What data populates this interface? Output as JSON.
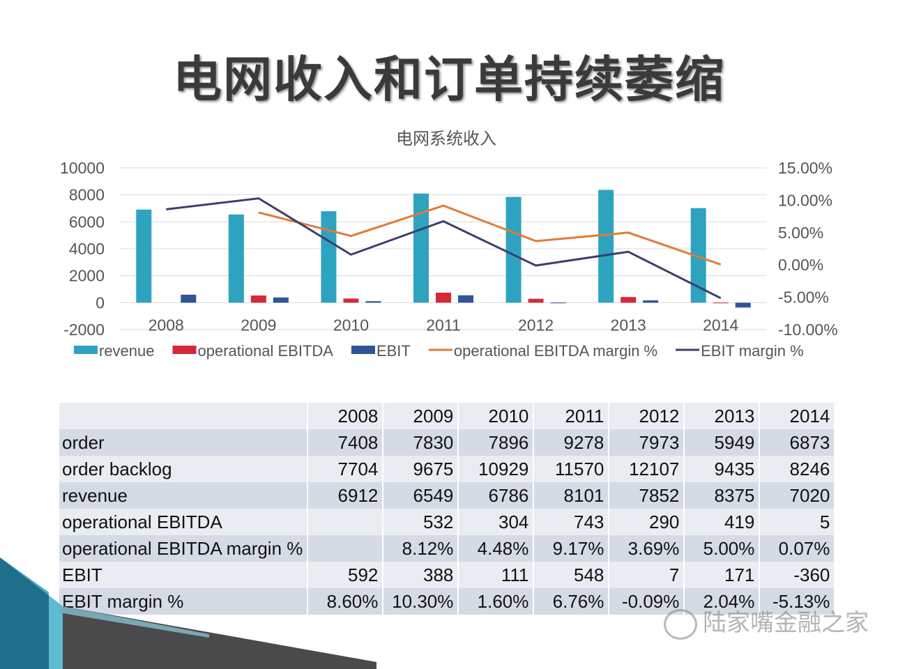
{
  "slide": {
    "title": "电网收入和订单持续萎缩"
  },
  "chart_data": {
    "type": "bar",
    "title": "电网系统收入",
    "categories": [
      "2008",
      "2009",
      "2010",
      "2011",
      "2012",
      "2013",
      "2014"
    ],
    "series": [
      {
        "name": "revenue",
        "kind": "bar",
        "axis": "left",
        "color": "#2ea3c0",
        "values": [
          6912,
          6549,
          6786,
          8101,
          7852,
          8375,
          7020
        ]
      },
      {
        "name": "operational EBITDA",
        "kind": "bar",
        "axis": "left",
        "color": "#d62839",
        "values": [
          null,
          532,
          304,
          743,
          290,
          419,
          5
        ]
      },
      {
        "name": "EBIT",
        "kind": "bar",
        "axis": "left",
        "color": "#2f5597",
        "values": [
          592,
          388,
          111,
          548,
          7,
          171,
          -360
        ]
      },
      {
        "name": "operational EBITDA margin %",
        "kind": "line",
        "axis": "right",
        "color": "#e07b39",
        "values": [
          null,
          8.12,
          4.48,
          9.17,
          3.69,
          5.0,
          0.07
        ]
      },
      {
        "name": "EBIT margin %",
        "kind": "line",
        "axis": "right",
        "color": "#3b3f6b",
        "values": [
          8.6,
          10.3,
          1.6,
          6.76,
          -0.09,
          2.04,
          -5.13
        ]
      }
    ],
    "y_left": {
      "min": -2000,
      "max": 10000,
      "ticks": [
        "10000",
        "8000",
        "6000",
        "4000",
        "2000",
        "0",
        "-2000"
      ]
    },
    "y_right": {
      "min": -10,
      "max": 15,
      "ticks": [
        "15.00%",
        "10.00%",
        "5.00%",
        "0.00%",
        "-5.00%",
        "-10.00%"
      ]
    },
    "grid": true,
    "legend_position": "bottom"
  },
  "table": {
    "header": [
      "",
      "2008",
      "2009",
      "2010",
      "2011",
      "2012",
      "2013",
      "2014"
    ],
    "rows": [
      {
        "label": "order",
        "cells": [
          "7408",
          "7830",
          "7896",
          "9278",
          "7973",
          "5949",
          "6873"
        ]
      },
      {
        "label": "order backlog",
        "cells": [
          "7704",
          "9675",
          "10929",
          "11570",
          "12107",
          "9435",
          "8246"
        ]
      },
      {
        "label": "revenue",
        "cells": [
          "6912",
          "6549",
          "6786",
          "8101",
          "7852",
          "8375",
          "7020"
        ]
      },
      {
        "label": "operational EBITDA",
        "cells": [
          "",
          "532",
          "304",
          "743",
          "290",
          "419",
          "5"
        ]
      },
      {
        "label": "operational EBITDA margin %",
        "cells": [
          "",
          "8.12%",
          "4.48%",
          "9.17%",
          "3.69%",
          "5.00%",
          "0.07%"
        ]
      },
      {
        "label": "EBIT",
        "cells": [
          "592",
          "388",
          "111",
          "548",
          "7",
          "171",
          "-360"
        ]
      },
      {
        "label": "EBIT margin %",
        "cells": [
          "8.60%",
          "10.30%",
          "1.60%",
          "6.76%",
          "-0.09%",
          "2.04%",
          "-5.13%"
        ]
      }
    ]
  },
  "watermark": {
    "text": "陆家嘴金融之家",
    "icon": "wechat-icon"
  }
}
